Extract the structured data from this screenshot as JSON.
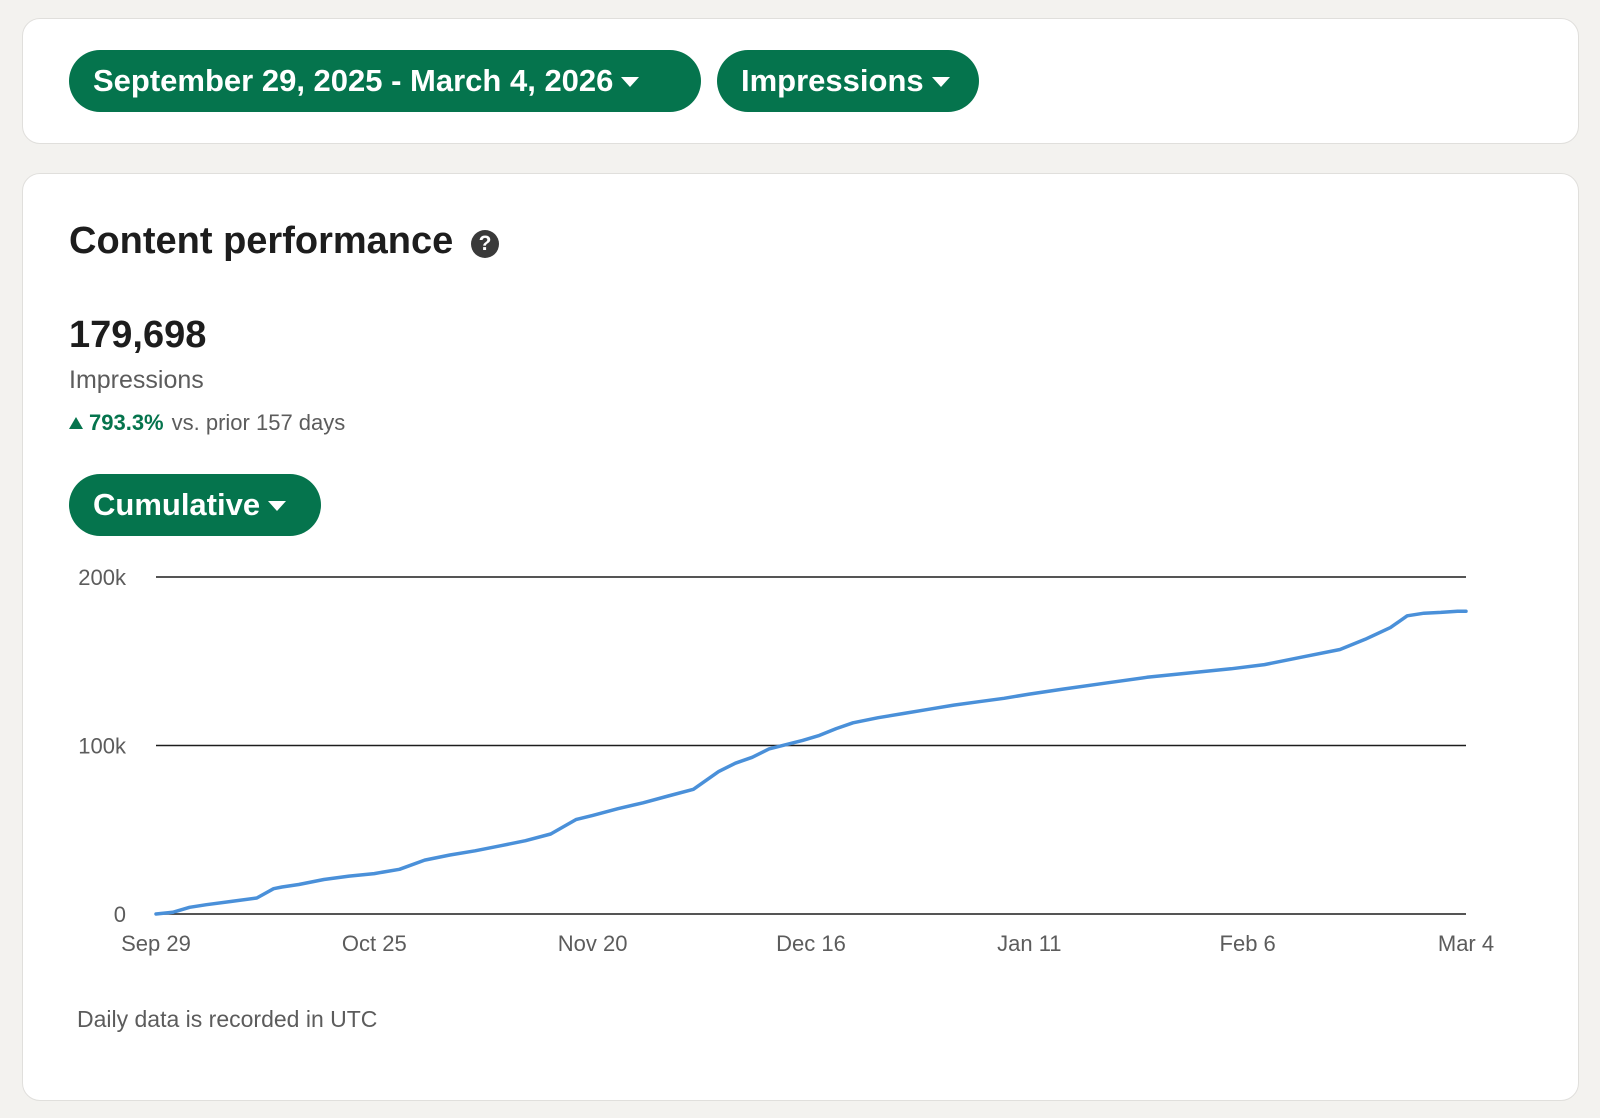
{
  "filters": {
    "date_range_label": "September 29, 2025 - March 4, 2026",
    "metric_label": "Impressions"
  },
  "panel": {
    "title": "Content performance",
    "help_icon_glyph": "?",
    "total_value": "179,698",
    "total_label": "Impressions",
    "change_percent": "793.3%",
    "change_text": "vs. prior 157 days",
    "change_direction": "up",
    "view_mode_label": "Cumulative",
    "footnote": "Daily data is recorded in UTC"
  },
  "colors": {
    "accent_green": "#05744d",
    "line_blue": "#4a90d9"
  },
  "chart_data": {
    "type": "line",
    "title": "",
    "xlabel": "",
    "ylabel": "",
    "ylim": [
      0,
      200000
    ],
    "y_ticks": [
      {
        "value": 0,
        "label": "0"
      },
      {
        "value": 100000,
        "label": "100k"
      },
      {
        "value": 200000,
        "label": "200k"
      }
    ],
    "x_ticks": [
      "Sep 29",
      "Oct 25",
      "Nov 20",
      "Dec 16",
      "Jan 11",
      "Feb 6",
      "Mar 4"
    ],
    "x_range": [
      "2025-09-29",
      "2026-03-04"
    ],
    "grid": "horizontal",
    "legend": "none",
    "series": [
      {
        "x": [
          "2025-09-29",
          "2025-10-01",
          "2025-10-03",
          "2025-10-05",
          "2025-10-08",
          "2025-10-11",
          "2025-10-13",
          "2025-10-14",
          "2025-10-16",
          "2025-10-19",
          "2025-10-22",
          "2025-10-25",
          "2025-10-28",
          "2025-10-31",
          "2025-11-03",
          "2025-11-06",
          "2025-11-09",
          "2025-11-12",
          "2025-11-15",
          "2025-11-18",
          "2025-11-20",
          "2025-11-23",
          "2025-11-26",
          "2025-11-29",
          "2025-12-02",
          "2025-12-05",
          "2025-12-07",
          "2025-12-09",
          "2025-12-11",
          "2025-12-13",
          "2025-12-15",
          "2025-12-17",
          "2025-12-19",
          "2025-12-21",
          "2025-12-24",
          "2025-12-27",
          "2025-12-30",
          "2026-01-02",
          "2026-01-05",
          "2026-01-08",
          "2026-01-11",
          "2026-01-15",
          "2026-01-20",
          "2026-01-25",
          "2026-01-30",
          "2026-02-04",
          "2026-02-08",
          "2026-02-13",
          "2026-02-17",
          "2026-02-20",
          "2026-02-23",
          "2026-02-25",
          "2026-02-27",
          "2026-03-01",
          "2026-03-03",
          "2026-03-04"
        ],
        "y": [
          0,
          1000,
          4000,
          5500,
          7500,
          9500,
          15000,
          16000,
          17500,
          20500,
          22500,
          24000,
          26500,
          32000,
          35000,
          37500,
          40500,
          43500,
          47500,
          56000,
          58500,
          62500,
          66000,
          70000,
          74000,
          84500,
          89500,
          93000,
          98000,
          100500,
          103000,
          106000,
          110000,
          113500,
          116500,
          119000,
          121500,
          124000,
          126000,
          128000,
          130500,
          133500,
          137000,
          140500,
          143000,
          145500,
          148000,
          153000,
          157000,
          163000,
          170000,
          177000,
          178500,
          179000,
          179698,
          179698
        ]
      }
    ]
  }
}
